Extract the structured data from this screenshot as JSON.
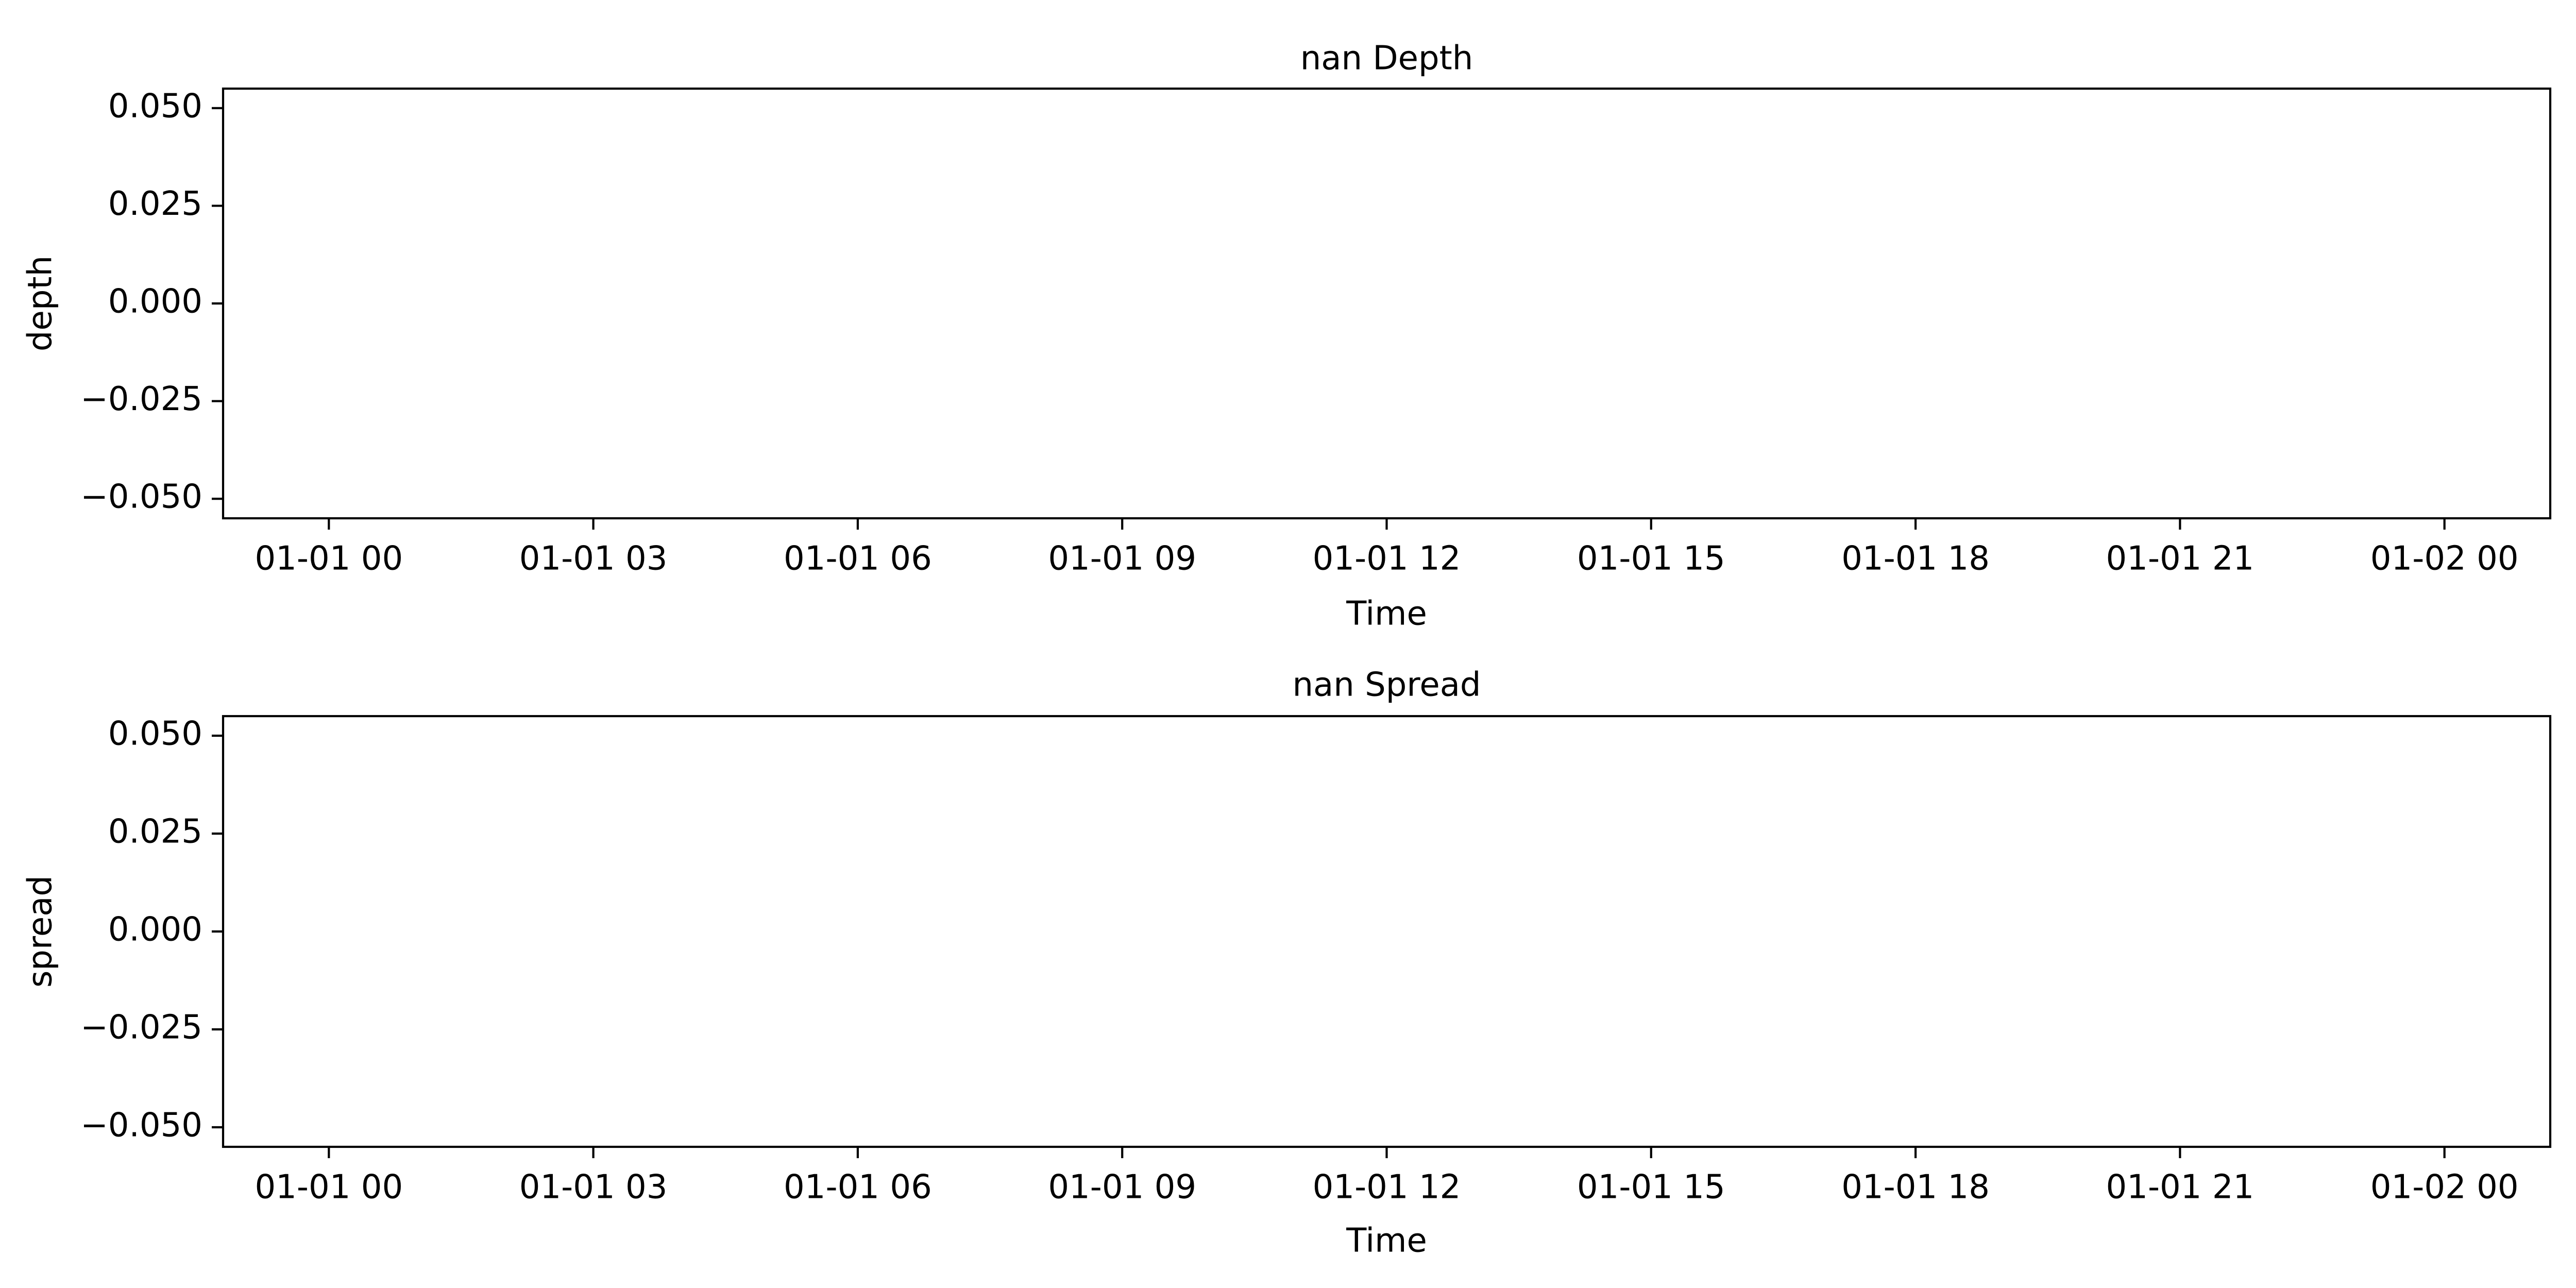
{
  "chart_data": [
    {
      "type": "line",
      "title": "nan Depth",
      "xlabel": "Time",
      "ylabel": "depth",
      "xlim": [
        "2023-12-31 22:48",
        "2024-01-02 01:12"
      ],
      "ylim": [
        -0.055,
        0.055
      ],
      "xtick_labels": [
        "01-01 00",
        "01-01 03",
        "01-01 06",
        "01-01 09",
        "01-01 12",
        "01-01 15",
        "01-01 18",
        "01-01 21",
        "01-02 00"
      ],
      "ytick_values": [
        0.05,
        0.025,
        0.0,
        -0.025,
        -0.05
      ],
      "ytick_labels": [
        "0.050",
        "0.025",
        "0.000",
        "−0.025",
        "−0.050"
      ],
      "series": [],
      "grid": false
    },
    {
      "type": "line",
      "title": "nan Spread",
      "xlabel": "Time",
      "ylabel": "spread",
      "xlim": [
        "2023-12-31 22:48",
        "2024-01-02 01:12"
      ],
      "ylim": [
        -0.055,
        0.055
      ],
      "xtick_labels": [
        "01-01 00",
        "01-01 03",
        "01-01 06",
        "01-01 09",
        "01-01 12",
        "01-01 15",
        "01-01 18",
        "01-01 21",
        "01-02 00"
      ],
      "ytick_values": [
        0.05,
        0.025,
        0.0,
        -0.025,
        -0.05
      ],
      "ytick_labels": [
        "0.050",
        "0.025",
        "0.000",
        "−0.025",
        "−0.050"
      ],
      "series": [],
      "grid": false
    }
  ]
}
